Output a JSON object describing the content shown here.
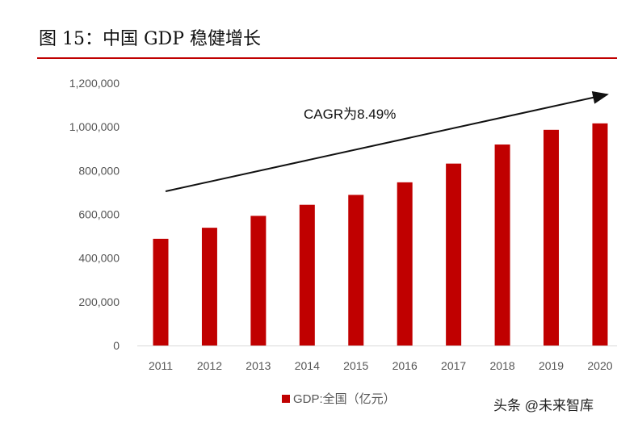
{
  "title": "图 15：中国 GDP 稳健增长",
  "watermark": "头条 @未来智库",
  "chart_data": {
    "type": "bar",
    "categories": [
      "2011",
      "2012",
      "2013",
      "2014",
      "2015",
      "2016",
      "2017",
      "2018",
      "2019",
      "2020"
    ],
    "series": [
      {
        "name": "GDP:全国（亿元）",
        "values": [
          487940,
          538580,
          592963,
          643563,
          688858,
          746395,
          832036,
          919281,
          986515,
          1015986
        ],
        "color": "#c00000"
      }
    ],
    "ylim": [
      0,
      1200000
    ],
    "yticks": [
      0,
      200000,
      400000,
      600000,
      800000,
      1000000,
      1200000
    ],
    "ytick_labels": [
      "0",
      "200,000",
      "400,000",
      "600,000",
      "800,000",
      "1,000,000",
      "1,200,000"
    ],
    "grid": false,
    "legend": "bottom",
    "annotation": {
      "text": "CAGR为8.49%",
      "arrow": "upward trend arrow from 2011 to 2020"
    }
  }
}
